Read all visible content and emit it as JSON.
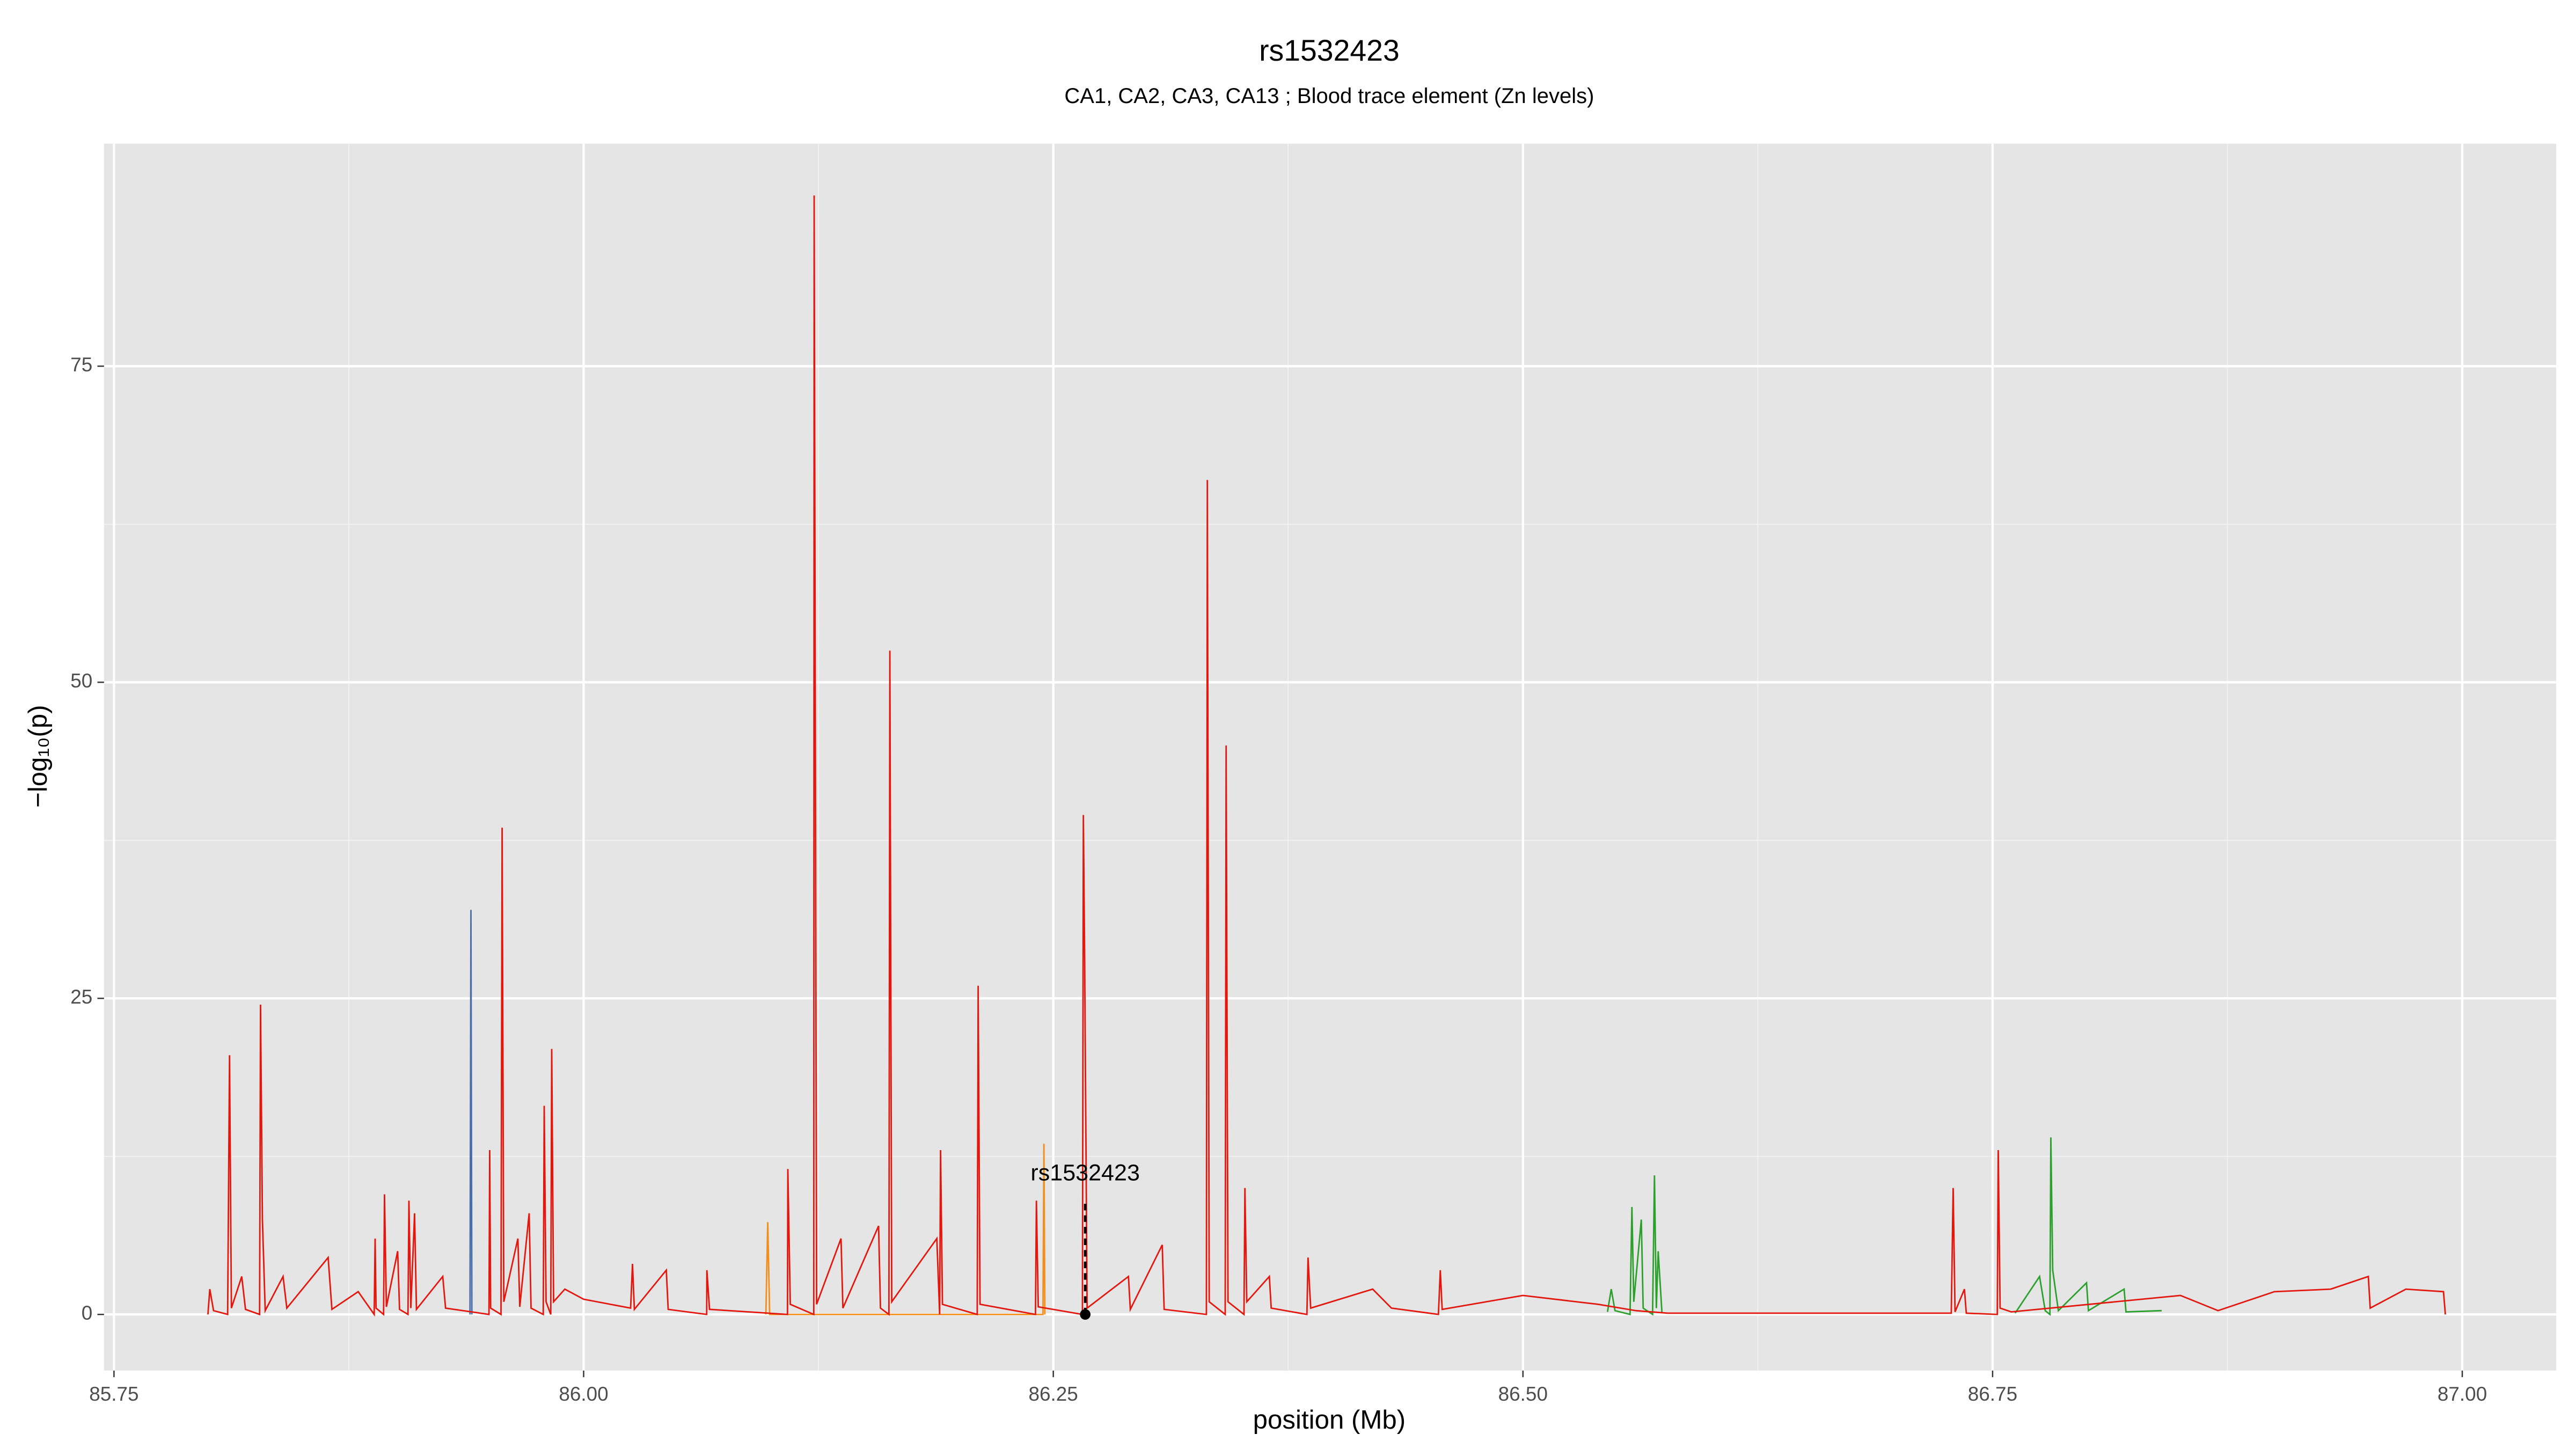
{
  "chart_data": {
    "type": "line",
    "title": "rs1532423",
    "subtitle": "CA1, CA2, CA3, CA13 ; Blood trace element (Zn levels)",
    "x_label": "position (Mb)",
    "y_label": "−log₁₀(p)",
    "xlim": [
      85.7447,
      87.05
    ],
    "ylim": [
      -4.44,
      92.6
    ],
    "xticks": [
      {
        "value": 85.75,
        "label": "85.75"
      },
      {
        "value": 86,
        "label": "86.00"
      },
      {
        "value": 86.25,
        "label": "86.25"
      },
      {
        "value": 86.5,
        "label": "86.50"
      },
      {
        "value": 86.75,
        "label": "86.75"
      },
      {
        "value": 87,
        "label": "87.00"
      }
    ],
    "yticks": [
      0,
      25,
      50,
      75
    ],
    "grid": true,
    "series": [
      {
        "name": "green",
        "color": "#2ca02c",
        "x": [
          86.545,
          86.547,
          86.549,
          86.557,
          86.558,
          86.559,
          86.563,
          86.564,
          86.569,
          86.57,
          86.571,
          86.572,
          86.574,
          null,
          86.762,
          86.775,
          86.778,
          86.7805,
          86.781,
          86.782,
          86.785,
          86.8,
          86.801,
          86.82,
          86.821,
          86.84
        ],
        "values": [
          0.2,
          2,
          0.3,
          0,
          8.5,
          1,
          7.5,
          0.5,
          0,
          11,
          0.5,
          5,
          0.1,
          null,
          0.1,
          3,
          0.3,
          0,
          14,
          3.5,
          0.3,
          2.5,
          0.3,
          2,
          0.2,
          0.3
        ]
      },
      {
        "name": "orange",
        "color": "#f28e1c",
        "x": [
          86.097,
          86.098,
          86.099,
          86.2445,
          86.245,
          86.2455
        ],
        "values": [
          0,
          7.3,
          0,
          0,
          13.5,
          0
        ]
      },
      {
        "name": "blue",
        "color": "#4a6ea9",
        "x": [
          85.9395,
          85.94,
          85.9405
        ],
        "values": [
          0,
          32,
          0
        ]
      },
      {
        "name": "red",
        "color": "#e3170d",
        "x": [
          85.8,
          85.801,
          85.803,
          85.8105,
          85.8115,
          85.8125,
          85.818,
          85.82,
          85.8275,
          85.828,
          85.829,
          85.8305,
          85.84,
          85.842,
          85.864,
          85.866,
          85.88,
          85.8885,
          85.889,
          85.8895,
          85.8935,
          85.894,
          85.895,
          85.901,
          85.902,
          85.9065,
          85.907,
          85.908,
          85.91,
          85.911,
          85.925,
          85.9265,
          85.9496,
          85.95,
          85.9505,
          85.956,
          85.9566,
          85.9575,
          85.965,
          85.966,
          85.971,
          85.972,
          85.9785,
          85.979,
          85.98,
          85.9825,
          85.983,
          85.984,
          85.99,
          86.0,
          86.025,
          86.026,
          86.027,
          86.044,
          86.045,
          86.0655,
          86.0656,
          86.067,
          86.1085,
          86.1087,
          86.11,
          86.1225,
          86.1227,
          86.124,
          86.137,
          86.138,
          86.157,
          86.158,
          86.1625,
          86.163,
          86.164,
          86.188,
          86.1895,
          86.19,
          86.191,
          86.2095,
          86.21,
          86.211,
          86.2405,
          86.241,
          86.242,
          86.2655,
          86.266,
          86.2667,
          86.268,
          86.29,
          86.291,
          86.308,
          86.309,
          86.3315,
          86.332,
          86.333,
          86.3415,
          86.342,
          86.343,
          86.3515,
          86.352,
          86.353,
          86.365,
          86.366,
          86.385,
          86.3856,
          86.387,
          86.42,
          86.43,
          86.455,
          86.456,
          86.457,
          86.5,
          86.54,
          86.56,
          86.577,
          86.728,
          86.729,
          86.73,
          86.735,
          86.736,
          86.7525,
          86.753,
          86.754,
          86.76,
          86.85,
          86.87,
          86.9,
          86.93,
          86.95,
          86.951,
          86.97,
          86.99,
          86.991
        ],
        "values": [
          0,
          2,
          0.3,
          0,
          20.5,
          0.5,
          3,
          0.4,
          0,
          24.5,
          7.5,
          0.3,
          3,
          0.5,
          4.5,
          0.4,
          1.8,
          0,
          6,
          0.5,
          0,
          9.5,
          0.6,
          5,
          0.4,
          0,
          9,
          0.5,
          8,
          0.4,
          3,
          0.5,
          0,
          13,
          0.5,
          0,
          38.5,
          1,
          6,
          0.6,
          8,
          0.5,
          0,
          16.5,
          1,
          0,
          21,
          1,
          2,
          1.2,
          0.5,
          4,
          0.4,
          3.5,
          0.4,
          0,
          3.5,
          0.4,
          0,
          11.5,
          0.8,
          0,
          88.5,
          0.8,
          6,
          0.5,
          7,
          0.5,
          0,
          52.5,
          1,
          6,
          0,
          13,
          0.8,
          0,
          26,
          0.8,
          0,
          9,
          0.6,
          0,
          39.5,
          28,
          0.5,
          3,
          0.4,
          5.5,
          0.4,
          0,
          66,
          1,
          0,
          45,
          1,
          0,
          10,
          1,
          3,
          0.5,
          0,
          4.5,
          0.5,
          2,
          0.5,
          0,
          3.5,
          0.4,
          1.5,
          0.8,
          0.3,
          0.1,
          0.1,
          10,
          0.2,
          2,
          0.1,
          0,
          13,
          0.5,
          0.2,
          1.5,
          0.3,
          1.8,
          2,
          3,
          0.5,
          2,
          1.8,
          0
        ]
      }
    ],
    "marker": {
      "label": "rs1532423",
      "x": 86.267,
      "y": 0,
      "line_top": 9
    }
  }
}
